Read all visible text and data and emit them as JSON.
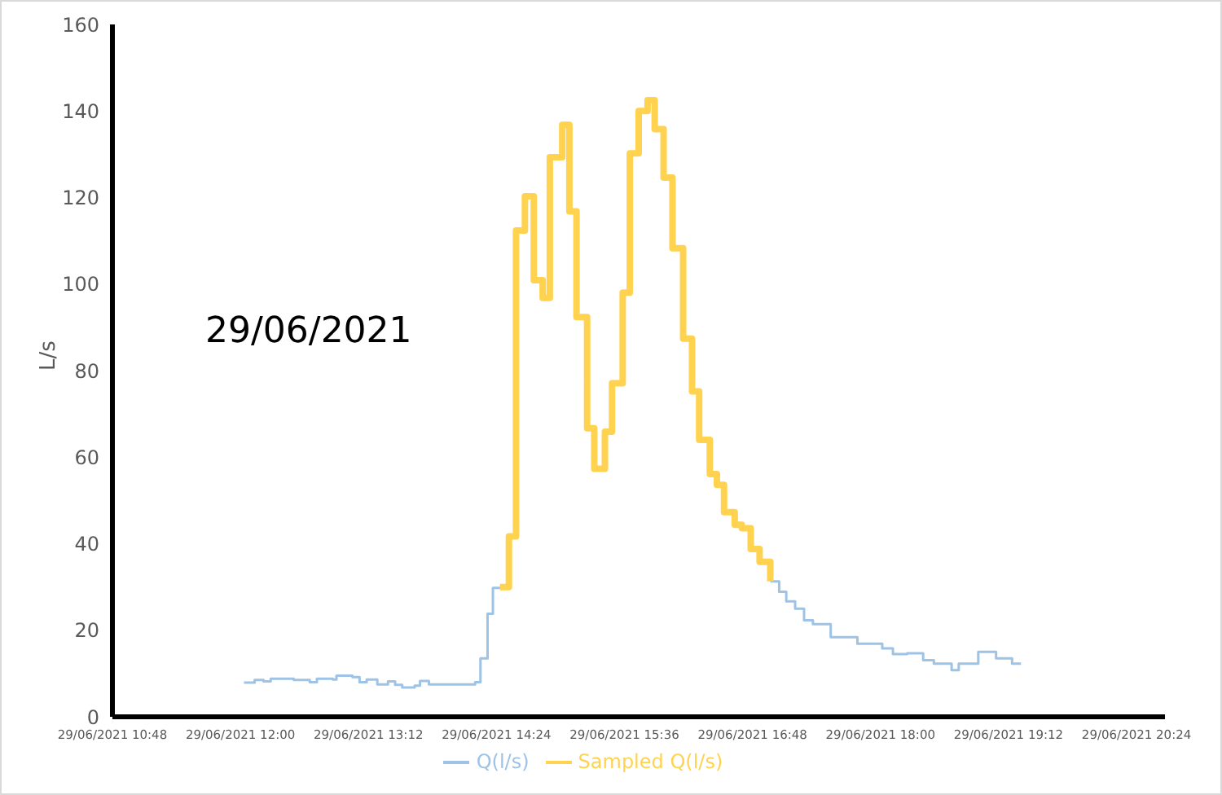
{
  "chart_data": {
    "type": "step",
    "ylabel": "L/s",
    "annotations": [
      "29/06/2021"
    ],
    "xlim": [
      "2021-06-29T10:48",
      "2021-06-29T20:40"
    ],
    "xticks": [
      {
        "value": "2021-06-29T10:48",
        "label": "29/06/2021 10:48"
      },
      {
        "value": "2021-06-29T12:00",
        "label": "29/06/2021 12:00"
      },
      {
        "value": "2021-06-29T13:12",
        "label": "29/06/2021 13:12"
      },
      {
        "value": "2021-06-29T14:24",
        "label": "29/06/2021 14:24"
      },
      {
        "value": "2021-06-29T15:36",
        "label": "29/06/2021 15:36"
      },
      {
        "value": "2021-06-29T16:48",
        "label": "29/06/2021 16:48"
      },
      {
        "value": "2021-06-29T18:00",
        "label": "29/06/2021 18:00"
      },
      {
        "value": "2021-06-29T19:12",
        "label": "29/06/2021 19:12"
      },
      {
        "value": "2021-06-29T20:24",
        "label": "29/06/2021 20:24"
      }
    ],
    "ylim": [
      0,
      160
    ],
    "yticks": [
      0,
      20,
      40,
      60,
      80,
      100,
      120,
      140,
      160
    ],
    "grid": false,
    "legend": "bottom",
    "marker": "none",
    "line_style": "solid",
    "series": [
      {
        "name": "Q(l/s)",
        "color": "#9dc3e6",
        "x": [
          "2021-06-29T12:02",
          "2021-06-29T12:08",
          "2021-06-29T12:13",
          "2021-06-29T12:17",
          "2021-06-29T12:30",
          "2021-06-29T12:39",
          "2021-06-29T12:43",
          "2021-06-29T12:52",
          "2021-06-29T12:54",
          "2021-06-29T13:03",
          "2021-06-29T13:07",
          "2021-06-29T13:11",
          "2021-06-29T13:17",
          "2021-06-29T13:23",
          "2021-06-29T13:27",
          "2021-06-29T13:31",
          "2021-06-29T13:38",
          "2021-06-29T13:41",
          "2021-06-29T13:46",
          "2021-06-29T13:58",
          "2021-06-29T14:12",
          "2021-06-29T14:15",
          "2021-06-29T14:19",
          "2021-06-29T14:22",
          "2021-06-29T14:26",
          "2021-06-29T15:42",
          "2021-06-29T16:58",
          "2021-06-29T17:03",
          "2021-06-29T17:07",
          "2021-06-29T17:12",
          "2021-06-29T17:17",
          "2021-06-29T17:22",
          "2021-06-29T17:32",
          "2021-06-29T17:47",
          "2021-06-29T18:01",
          "2021-06-29T18:07",
          "2021-06-29T18:15",
          "2021-06-29T18:24",
          "2021-06-29T18:30",
          "2021-06-29T18:40",
          "2021-06-29T18:44",
          "2021-06-29T18:55",
          "2021-06-29T19:05",
          "2021-06-29T19:14",
          "2021-06-29T19:19"
        ],
        "values": [
          7.9,
          8.5,
          8.2,
          8.8,
          8.5,
          8.0,
          8.8,
          8.6,
          9.5,
          9.2,
          8.0,
          8.6,
          7.5,
          8.2,
          7.4,
          6.8,
          7.2,
          8.3,
          7.5,
          7.5,
          8.0,
          13.5,
          23.8,
          29.8,
          30.0,
          null,
          31.3,
          28.9,
          26.7,
          25.0,
          22.3,
          21.4,
          18.4,
          16.9,
          15.8,
          14.5,
          14.7,
          13.1,
          12.3,
          10.8,
          12.3,
          15.0,
          13.5,
          12.3,
          12.3
        ]
      },
      {
        "name": "Sampled Q(l/s)",
        "color": "#ffd34f",
        "x": [
          "2021-06-29T14:26",
          "2021-06-29T14:31",
          "2021-06-29T14:35",
          "2021-06-29T14:40",
          "2021-06-29T14:45",
          "2021-06-29T14:50",
          "2021-06-29T14:54",
          "2021-06-29T15:01",
          "2021-06-29T15:05",
          "2021-06-29T15:09",
          "2021-06-29T15:15",
          "2021-06-29T15:19",
          "2021-06-29T15:25",
          "2021-06-29T15:29",
          "2021-06-29T15:35",
          "2021-06-29T15:39",
          "2021-06-29T15:44",
          "2021-06-29T15:49",
          "2021-06-29T15:53",
          "2021-06-29T15:58",
          "2021-06-29T16:03",
          "2021-06-29T16:09",
          "2021-06-29T16:14",
          "2021-06-29T16:18",
          "2021-06-29T16:24",
          "2021-06-29T16:28",
          "2021-06-29T16:32",
          "2021-06-29T16:38",
          "2021-06-29T16:42",
          "2021-06-29T16:47",
          "2021-06-29T16:52",
          "2021-06-29T16:58"
        ],
        "values": [
          30.0,
          41.7,
          112.4,
          120.3,
          100.9,
          96.8,
          129.3,
          136.8,
          116.8,
          92.4,
          66.7,
          57.3,
          65.9,
          77.1,
          98.0,
          130.2,
          140.0,
          142.5,
          135.8,
          124.6,
          108.3,
          87.4,
          75.2,
          64.0,
          56.1,
          53.6,
          47.3,
          44.4,
          43.6,
          38.8,
          35.8,
          31.3
        ]
      }
    ]
  }
}
